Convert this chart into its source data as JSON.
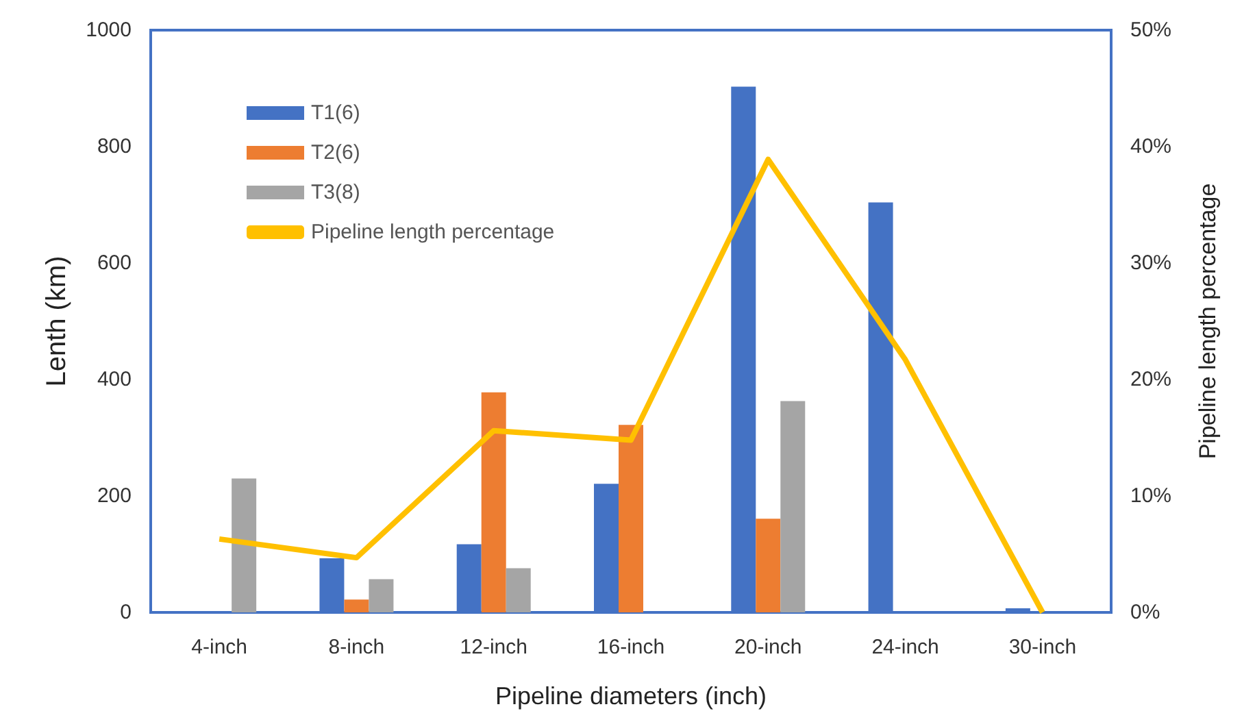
{
  "chart_data": {
    "type": "bar",
    "xlabel": "Pipeline diameters (inch)",
    "ylabel": "Lenth (km)",
    "y2label": "Pipeline length percentage",
    "categories": [
      "4-inch",
      "8-inch",
      "12-inch",
      "16-inch",
      "20-inch",
      "24-inch",
      "30-inch"
    ],
    "series": [
      {
        "name": "T1(6)",
        "color": "#4472c4",
        "values": [
          null,
          93,
          117,
          221,
          903,
          704,
          7
        ]
      },
      {
        "name": "T2(6)",
        "color": "#ed7d31",
        "values": [
          null,
          22,
          378,
          322,
          161,
          null,
          null
        ]
      },
      {
        "name": "T3(8)",
        "color": "#a5a5a5",
        "values": [
          230,
          57,
          76,
          null,
          363,
          null,
          null
        ]
      },
      {
        "name": "Pipeline length percentage",
        "type": "line",
        "axis": "y2",
        "color": "#ffc000",
        "marker": "none",
        "values": [
          6.3,
          4.7,
          15.6,
          14.8,
          38.9,
          21.7,
          0
        ]
      }
    ],
    "ylim": [
      0,
      1000
    ],
    "yticks": [
      0,
      200,
      400,
      600,
      800,
      1000
    ],
    "y2lim": [
      0,
      50
    ],
    "y2ticks": [
      {
        "value": 0,
        "label": "0%"
      },
      {
        "value": 10,
        "label": "10%"
      },
      {
        "value": 20,
        "label": "20%"
      },
      {
        "value": 30,
        "label": "30%"
      },
      {
        "value": 40,
        "label": "40%"
      },
      {
        "value": 50,
        "label": "50%"
      }
    ],
    "grid": false,
    "legend": "top left"
  }
}
